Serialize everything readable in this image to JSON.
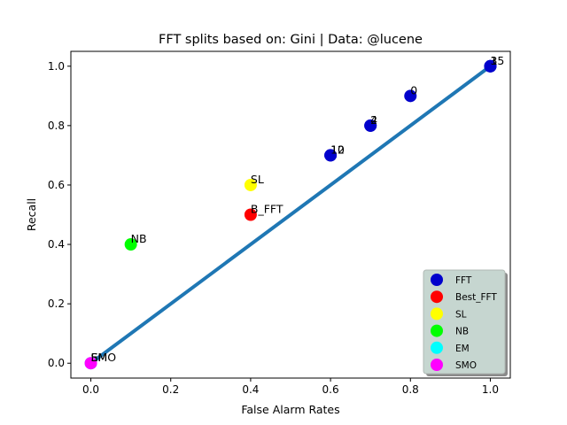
{
  "chart_data": {
    "type": "scatter",
    "title": "FFT splits based on: Gini  |  Data: @lucene",
    "xlabel": "False Alarm Rates",
    "ylabel": "Recall",
    "xlim": [
      -0.05,
      1.05
    ],
    "ylim": [
      -0.05,
      1.05
    ],
    "xticks": [
      0.0,
      0.2,
      0.4,
      0.6,
      0.8,
      1.0
    ],
    "yticks": [
      0.0,
      0.2,
      0.4,
      0.6,
      0.8,
      1.0
    ],
    "tick_labels": [
      "0.0",
      "0.2",
      "0.4",
      "0.6",
      "0.8",
      "1.0"
    ],
    "grid": false,
    "legend_position": "bottom-right",
    "diagonal_line": {
      "x": [
        0,
        1
      ],
      "y": [
        0,
        1
      ],
      "color": "#1f77b4"
    },
    "series": [
      {
        "name": "FFT",
        "color": "#0000cc",
        "points": [
          {
            "x": 1.0,
            "y": 1.0,
            "label": "15"
          },
          {
            "x": 1.0,
            "y": 1.0,
            "label": "1"
          },
          {
            "x": 1.0,
            "y": 1.0,
            "label": "3"
          },
          {
            "x": 0.8,
            "y": 0.9,
            "label": "0"
          },
          {
            "x": 0.7,
            "y": 0.8,
            "label": "2"
          },
          {
            "x": 0.7,
            "y": 0.8,
            "label": "4"
          },
          {
            "x": 0.6,
            "y": 0.7,
            "label": "10"
          },
          {
            "x": 0.6,
            "y": 0.7,
            "label": "12"
          }
        ]
      },
      {
        "name": "Best_FFT",
        "color": "#ff0000",
        "points": [
          {
            "x": 0.4,
            "y": 0.5,
            "label": "B_FFT"
          }
        ]
      },
      {
        "name": "SL",
        "color": "#ffff00",
        "points": [
          {
            "x": 0.4,
            "y": 0.6,
            "label": "SL"
          }
        ]
      },
      {
        "name": "NB",
        "color": "#00ff00",
        "points": [
          {
            "x": 0.1,
            "y": 0.4,
            "label": "NB"
          }
        ]
      },
      {
        "name": "EM",
        "color": "#00ffff",
        "points": [
          {
            "x": 0.0,
            "y": 0.0,
            "label": "EM"
          }
        ]
      },
      {
        "name": "SMO",
        "color": "#ff00ff",
        "points": [
          {
            "x": 0.0,
            "y": 0.0,
            "label": "SMO"
          }
        ]
      }
    ]
  }
}
